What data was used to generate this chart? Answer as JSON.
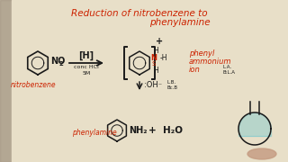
{
  "bg_color": "#c8bfa8",
  "wb_color": "#e8dfc8",
  "title_color": "#cc2200",
  "black": "#1a1a1a",
  "title_line1": "Reduction of nitrobenzene to",
  "title_line2": "phenylamine",
  "label_nitrobenzene": "nitrobenzene",
  "label_phenylamine": "phenylamine",
  "label_H": "[H]",
  "label_concHCl": "conc HCl",
  "label_5M": "5M",
  "label_NO2": "NO",
  "label_2": "2",
  "label_phenyl": "phenyl",
  "label_ammonium": "ammonium",
  "label_ion": "ion",
  "label_LA": "L.A.",
  "label_BLA": "B:L.A",
  "label_OH": ":OH⁻",
  "label_LB": "L.B.",
  "label_BcB": "Bc.B",
  "label_NH2": "NH₂",
  "label_H2O": "+ H₂O",
  "label_plus": "+"
}
